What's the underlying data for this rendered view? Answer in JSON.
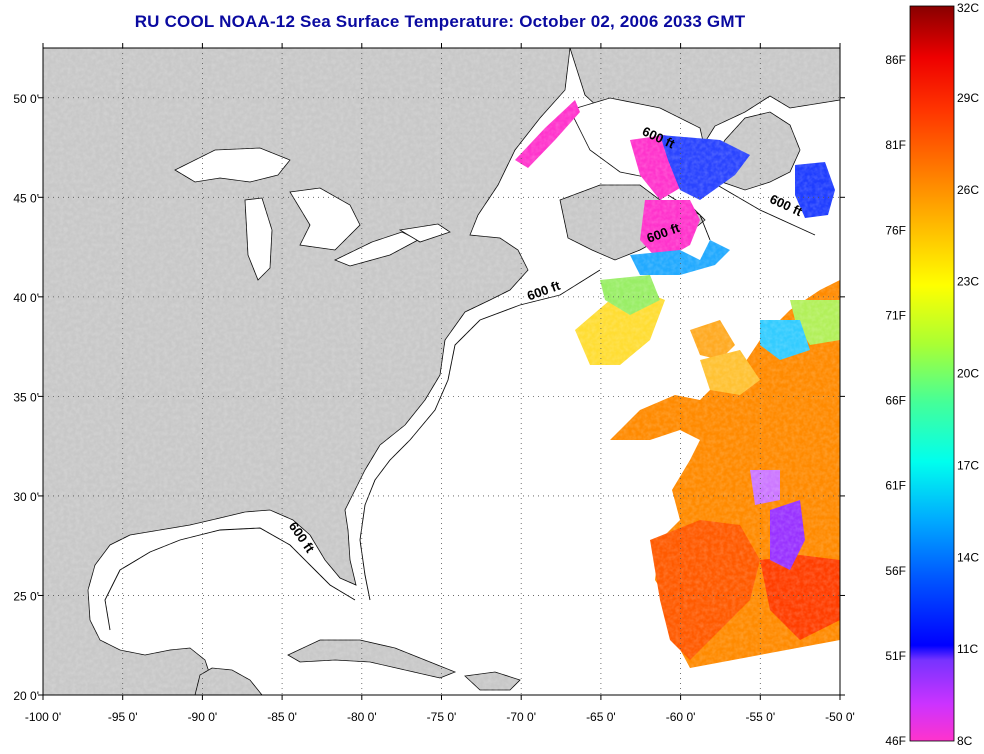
{
  "title": "RU COOL  NOAA-12  Sea Surface Temperature:  October 02, 2006 2033 GMT",
  "map": {
    "lon_range": [
      -100,
      -50
    ],
    "lat_range": [
      20,
      52.5
    ],
    "lon_ticks": [
      {
        "value": -100,
        "label": "-100 0'"
      },
      {
        "value": -95,
        "label": "-95 0'"
      },
      {
        "value": -90,
        "label": "-90 0'"
      },
      {
        "value": -85,
        "label": "-85 0'"
      },
      {
        "value": -80,
        "label": "-80 0'"
      },
      {
        "value": -75,
        "label": "-75 0'"
      },
      {
        "value": -70,
        "label": "-70 0'"
      },
      {
        "value": -65,
        "label": "-65 0'"
      },
      {
        "value": -60,
        "label": "-60 0'"
      },
      {
        "value": -55,
        "label": "-55 0'"
      },
      {
        "value": -50,
        "label": "-50 0'"
      }
    ],
    "lat_ticks": [
      {
        "value": 20,
        "label": "20 0'"
      },
      {
        "value": 25,
        "label": "25 0'"
      },
      {
        "value": 30,
        "label": "30 0'"
      },
      {
        "value": 35,
        "label": "35 0'"
      },
      {
        "value": 40,
        "label": "40 0'"
      },
      {
        "value": 45,
        "label": "45 0'"
      },
      {
        "value": 50,
        "label": "50 0'"
      }
    ],
    "depth_labels": [
      {
        "text": "600 ft",
        "lon": -61.5,
        "lat": 47.8,
        "rotate": 25
      },
      {
        "text": "600 ft",
        "lon": -53.5,
        "lat": 44.4,
        "rotate": 25
      },
      {
        "text": "600 ft",
        "lon": -61.0,
        "lat": 43.0,
        "rotate": -20
      },
      {
        "text": "600 ft",
        "lon": -68.5,
        "lat": 40.1,
        "rotate": -20
      },
      {
        "text": "600 ft",
        "lon": -84.0,
        "lat": 27.8,
        "rotate": 55
      }
    ]
  },
  "colorbar": {
    "temp_range_c": [
      8,
      32
    ],
    "celsius_labels": [
      "32C",
      "29C",
      "26C",
      "23C",
      "20C",
      "17C",
      "14C",
      "11C",
      "8C"
    ],
    "fahrenheit_labels": [
      "86F",
      "81F",
      "76F",
      "71F",
      "66F",
      "61F",
      "56F",
      "51F",
      "46F"
    ],
    "colors": [
      "#ff33cc",
      "#9933ff",
      "#0000ff",
      "#0066ff",
      "#00ccff",
      "#00ffcc",
      "#66ff66",
      "#ccff00",
      "#ffff00",
      "#ffcc00",
      "#ff9900",
      "#ff6600",
      "#ff3300",
      "#ff0000",
      "#cc0000",
      "#880000"
    ]
  }
}
